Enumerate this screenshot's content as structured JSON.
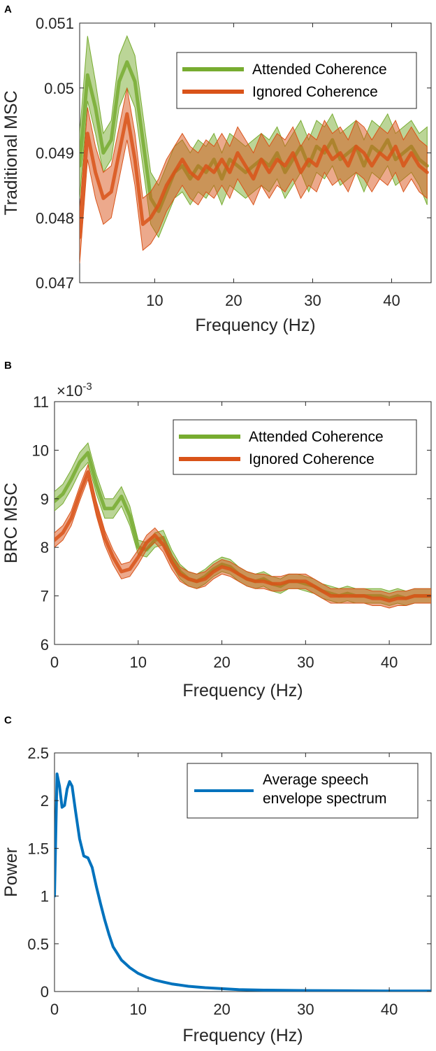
{
  "colors": {
    "attended": "#77AC30",
    "ignored": "#D95319",
    "speech": "#0072BD",
    "axis": "#262626"
  },
  "chart_data": [
    {
      "panel": "A",
      "type": "line",
      "xlabel": "Frequency (Hz)",
      "ylabel": "Traditional MSC",
      "xlim": [
        0.5,
        45
      ],
      "ylim": [
        0.047,
        0.051
      ],
      "xticks": [
        10,
        20,
        30,
        40
      ],
      "xtick_labels": [
        "10",
        "20",
        "30",
        "40"
      ],
      "yticks": [
        0.047,
        0.048,
        0.049,
        0.05,
        0.051
      ],
      "ytick_labels": [
        "0.047",
        "0.048",
        "0.049",
        "0.05",
        "0.051"
      ],
      "exponent": "",
      "legend": [
        "Attended Coherence",
        "Ignored Coherence"
      ],
      "legend_position": "top-right",
      "series": [
        {
          "name": "Attended Coherence",
          "x": [
            0.5,
            1.5,
            2.5,
            3.5,
            4.5,
            5.5,
            6.5,
            7.5,
            8.5,
            9.5,
            10.5,
            11.5,
            12.5,
            13.5,
            14.5,
            15.5,
            16.5,
            17.5,
            18.5,
            19.5,
            20.5,
            21.5,
            22.5,
            23.5,
            24.5,
            25.5,
            26.5,
            27.5,
            28.5,
            29.5,
            30.5,
            31.5,
            32.5,
            33.5,
            34.5,
            35.5,
            36.5,
            37.5,
            38.5,
            39.5,
            40.5,
            41.5,
            42.5,
            43.5,
            44.5
          ],
          "mean": [
            0.0488,
            0.0502,
            0.0497,
            0.049,
            0.0492,
            0.0501,
            0.0504,
            0.0501,
            0.0492,
            0.0483,
            0.0481,
            0.0484,
            0.0487,
            0.0488,
            0.0486,
            0.0488,
            0.0487,
            0.0489,
            0.0486,
            0.0489,
            0.0488,
            0.0487,
            0.0488,
            0.0489,
            0.0488,
            0.049,
            0.0487,
            0.0489,
            0.0491,
            0.0488,
            0.0491,
            0.049,
            0.0492,
            0.0489,
            0.049,
            0.0491,
            0.0488,
            0.0491,
            0.049,
            0.0492,
            0.0489,
            0.049,
            0.0491,
            0.0489,
            0.0488
          ],
          "lower": [
            0.0483,
            0.0498,
            0.0493,
            0.0487,
            0.0489,
            0.0497,
            0.05,
            0.0497,
            0.0488,
            0.0479,
            0.0477,
            0.048,
            0.0483,
            0.0484,
            0.0482,
            0.0484,
            0.0483,
            0.0485,
            0.0482,
            0.0485,
            0.0484,
            0.0483,
            0.0484,
            0.0485,
            0.0484,
            0.0486,
            0.0483,
            0.0485,
            0.0487,
            0.0484,
            0.0487,
            0.0486,
            0.0488,
            0.0485,
            0.0486,
            0.0487,
            0.0484,
            0.0487,
            0.0486,
            0.0488,
            0.0485,
            0.0486,
            0.0487,
            0.0485,
            0.0482
          ],
          "upper": [
            0.0493,
            0.0508,
            0.0501,
            0.0493,
            0.0495,
            0.0505,
            0.0508,
            0.0505,
            0.0496,
            0.0487,
            0.0485,
            0.0488,
            0.0491,
            0.0492,
            0.049,
            0.0492,
            0.0491,
            0.0493,
            0.049,
            0.0493,
            0.0492,
            0.0491,
            0.0492,
            0.0493,
            0.0492,
            0.0494,
            0.0491,
            0.0493,
            0.0495,
            0.0492,
            0.0495,
            0.0494,
            0.0496,
            0.0493,
            0.0494,
            0.0495,
            0.0492,
            0.0495,
            0.0494,
            0.0496,
            0.0493,
            0.0494,
            0.0495,
            0.0493,
            0.0494
          ]
        },
        {
          "name": "Ignored Coherence",
          "x": [
            0.5,
            1.5,
            2.5,
            3.5,
            4.5,
            5.5,
            6.5,
            7.5,
            8.5,
            9.5,
            10.5,
            11.5,
            12.5,
            13.5,
            14.5,
            15.5,
            16.5,
            17.5,
            18.5,
            19.5,
            20.5,
            21.5,
            22.5,
            23.5,
            24.5,
            25.5,
            26.5,
            27.5,
            28.5,
            29.5,
            30.5,
            31.5,
            32.5,
            33.5,
            34.5,
            35.5,
            36.5,
            37.5,
            38.5,
            39.5,
            40.5,
            41.5,
            42.5,
            43.5,
            44.5
          ],
          "mean": [
            0.0477,
            0.0493,
            0.0487,
            0.0483,
            0.0484,
            0.049,
            0.0496,
            0.0489,
            0.0479,
            0.048,
            0.0482,
            0.0485,
            0.0487,
            0.0489,
            0.0487,
            0.0486,
            0.0488,
            0.0487,
            0.0489,
            0.0487,
            0.049,
            0.0488,
            0.0486,
            0.0489,
            0.0487,
            0.0489,
            0.0488,
            0.049,
            0.0487,
            0.0489,
            0.0488,
            0.0491,
            0.0489,
            0.049,
            0.0488,
            0.0491,
            0.049,
            0.0488,
            0.049,
            0.0489,
            0.0491,
            0.0488,
            0.049,
            0.0488,
            0.0487
          ],
          "lower": [
            0.0473,
            0.0489,
            0.0483,
            0.0479,
            0.048,
            0.0486,
            0.0492,
            0.0485,
            0.0475,
            0.0476,
            0.0478,
            0.0481,
            0.0483,
            0.0485,
            0.0483,
            0.0482,
            0.0484,
            0.0483,
            0.0485,
            0.0483,
            0.0486,
            0.0484,
            0.0482,
            0.0485,
            0.0483,
            0.0485,
            0.0484,
            0.0486,
            0.0483,
            0.0485,
            0.0484,
            0.0487,
            0.0485,
            0.0486,
            0.0484,
            0.0487,
            0.0486,
            0.0484,
            0.0486,
            0.0485,
            0.0487,
            0.0484,
            0.0486,
            0.0484,
            0.0483
          ],
          "upper": [
            0.0481,
            0.0497,
            0.0491,
            0.0487,
            0.0488,
            0.0494,
            0.05,
            0.0493,
            0.0483,
            0.0484,
            0.0486,
            0.0489,
            0.0491,
            0.0493,
            0.0491,
            0.049,
            0.0492,
            0.0491,
            0.0493,
            0.0491,
            0.0494,
            0.0492,
            0.049,
            0.0493,
            0.0491,
            0.0493,
            0.0492,
            0.0494,
            0.0491,
            0.0493,
            0.0492,
            0.0495,
            0.0493,
            0.0494,
            0.0492,
            0.0495,
            0.0494,
            0.0492,
            0.0494,
            0.0493,
            0.0495,
            0.0492,
            0.0494,
            0.0492,
            0.0491
          ]
        }
      ]
    },
    {
      "panel": "B",
      "type": "line",
      "xlabel": "Frequency (Hz)",
      "ylabel": "BRC MSC",
      "xlim": [
        0,
        45
      ],
      "ylim": [
        6,
        11
      ],
      "xticks": [
        0,
        10,
        20,
        30,
        40
      ],
      "xtick_labels": [
        "0",
        "10",
        "20",
        "30",
        "40"
      ],
      "yticks": [
        6,
        7,
        8,
        9,
        10,
        11
      ],
      "ytick_labels": [
        "6",
        "7",
        "8",
        "9",
        "10",
        "11"
      ],
      "exponent": "-3",
      "legend": [
        "Attended Coherence",
        "Ignored Coherence"
      ],
      "legend_position": "top-right",
      "series": [
        {
          "name": "Attended Coherence",
          "x": [
            0,
            1,
            2,
            3,
            4,
            5,
            6,
            7,
            8,
            9,
            10,
            11,
            12,
            13,
            14,
            15,
            16,
            17,
            18,
            19,
            20,
            21,
            22,
            23,
            24,
            25,
            26,
            27,
            28,
            29,
            30,
            31,
            32,
            33,
            34,
            35,
            36,
            37,
            38,
            39,
            40,
            41,
            42,
            43,
            44,
            45
          ],
          "mean": [
            8.95,
            9.1,
            9.4,
            9.75,
            9.95,
            9.3,
            8.8,
            8.8,
            9.05,
            8.65,
            8.0,
            7.95,
            8.15,
            8.2,
            7.8,
            7.5,
            7.35,
            7.3,
            7.4,
            7.55,
            7.65,
            7.6,
            7.45,
            7.35,
            7.3,
            7.35,
            7.25,
            7.2,
            7.3,
            7.3,
            7.25,
            7.2,
            7.1,
            7.05,
            7.0,
            7.05,
            7.0,
            7.0,
            7.0,
            7.0,
            6.95,
            7.0,
            6.95,
            7.0,
            7.0,
            7.0
          ],
          "lower": [
            8.75,
            8.9,
            9.2,
            9.55,
            9.75,
            9.1,
            8.6,
            8.6,
            8.85,
            8.45,
            7.85,
            7.8,
            8.0,
            8.05,
            7.65,
            7.35,
            7.2,
            7.15,
            7.25,
            7.4,
            7.5,
            7.45,
            7.3,
            7.2,
            7.15,
            7.2,
            7.1,
            7.05,
            7.15,
            7.15,
            7.1,
            7.05,
            6.95,
            6.9,
            6.85,
            6.9,
            6.85,
            6.85,
            6.85,
            6.85,
            6.8,
            6.85,
            6.8,
            6.85,
            6.85,
            6.85
          ],
          "upper": [
            9.15,
            9.3,
            9.6,
            9.95,
            10.15,
            9.5,
            9.0,
            9.0,
            9.25,
            8.85,
            8.15,
            8.1,
            8.3,
            8.35,
            7.95,
            7.65,
            7.5,
            7.45,
            7.55,
            7.7,
            7.8,
            7.75,
            7.6,
            7.5,
            7.45,
            7.5,
            7.4,
            7.35,
            7.45,
            7.45,
            7.4,
            7.35,
            7.25,
            7.2,
            7.15,
            7.2,
            7.15,
            7.15,
            7.15,
            7.15,
            7.1,
            7.15,
            7.1,
            7.15,
            7.15,
            7.15
          ]
        },
        {
          "name": "Ignored Coherence",
          "x": [
            0,
            1,
            2,
            3,
            4,
            5,
            6,
            7,
            8,
            9,
            10,
            11,
            12,
            13,
            14,
            15,
            16,
            17,
            18,
            19,
            20,
            21,
            22,
            23,
            24,
            25,
            26,
            27,
            28,
            29,
            30,
            31,
            32,
            33,
            34,
            35,
            36,
            37,
            38,
            39,
            40,
            41,
            42,
            43,
            44,
            45
          ],
          "mean": [
            8.15,
            8.3,
            8.6,
            9.1,
            9.55,
            8.8,
            8.2,
            7.8,
            7.5,
            7.55,
            7.8,
            8.1,
            8.25,
            8.05,
            7.7,
            7.45,
            7.35,
            7.3,
            7.35,
            7.5,
            7.6,
            7.55,
            7.45,
            7.35,
            7.3,
            7.3,
            7.25,
            7.25,
            7.3,
            7.3,
            7.3,
            7.2,
            7.1,
            7.0,
            7.0,
            7.0,
            7.0,
            7.0,
            6.95,
            6.95,
            6.9,
            6.95,
            6.95,
            7.0,
            7.0,
            7.0
          ],
          "lower": [
            8.0,
            8.15,
            8.45,
            8.95,
            9.4,
            8.65,
            8.05,
            7.65,
            7.35,
            7.4,
            7.65,
            7.95,
            8.1,
            7.9,
            7.55,
            7.3,
            7.2,
            7.15,
            7.2,
            7.35,
            7.45,
            7.4,
            7.3,
            7.2,
            7.15,
            7.15,
            7.1,
            7.1,
            7.15,
            7.15,
            7.15,
            7.05,
            6.95,
            6.85,
            6.85,
            6.85,
            6.85,
            6.85,
            6.8,
            6.8,
            6.75,
            6.8,
            6.8,
            6.85,
            6.85,
            6.85
          ],
          "upper": [
            8.3,
            8.45,
            8.75,
            9.25,
            9.7,
            8.95,
            8.35,
            7.95,
            7.65,
            7.7,
            7.95,
            8.25,
            8.4,
            8.2,
            7.85,
            7.6,
            7.5,
            7.45,
            7.5,
            7.65,
            7.75,
            7.7,
            7.6,
            7.5,
            7.45,
            7.45,
            7.4,
            7.4,
            7.45,
            7.45,
            7.45,
            7.35,
            7.25,
            7.15,
            7.15,
            7.15,
            7.15,
            7.15,
            7.1,
            7.1,
            7.05,
            7.1,
            7.1,
            7.15,
            7.15,
            7.15
          ]
        }
      ]
    },
    {
      "panel": "C",
      "type": "line",
      "xlabel": "Frequency (Hz)",
      "ylabel": "Power",
      "xlim": [
        0,
        45
      ],
      "ylim": [
        0,
        2.5
      ],
      "xticks": [
        0,
        10,
        20,
        30,
        40
      ],
      "xtick_labels": [
        "0",
        "10",
        "20",
        "30",
        "40"
      ],
      "yticks": [
        0,
        0.5,
        1,
        1.5,
        2,
        2.5
      ],
      "ytick_labels": [
        "0",
        "0.5",
        "1",
        "1.5",
        "2",
        "2.5"
      ],
      "exponent": "",
      "legend": [
        "Average speech envelope spectrum"
      ],
      "legend_lines": [
        "Average speech",
        "envelope spectrum"
      ],
      "legend_position": "top-right",
      "series": [
        {
          "name": "Average speech envelope spectrum",
          "x": [
            0,
            0.3,
            0.6,
            0.9,
            1.2,
            1.5,
            1.8,
            2.1,
            2.5,
            3.0,
            3.5,
            4.0,
            4.5,
            5.0,
            5.5,
            6.0,
            6.5,
            7.0,
            8.0,
            9.0,
            10,
            11,
            12,
            13,
            14,
            16,
            18,
            20,
            22,
            25,
            30,
            35,
            40,
            45
          ],
          "y": [
            1.0,
            2.28,
            2.15,
            1.93,
            1.95,
            2.12,
            2.2,
            2.15,
            1.9,
            1.6,
            1.42,
            1.4,
            1.3,
            1.1,
            0.92,
            0.75,
            0.6,
            0.47,
            0.33,
            0.25,
            0.19,
            0.15,
            0.12,
            0.1,
            0.08,
            0.055,
            0.04,
            0.03,
            0.02,
            0.015,
            0.01,
            0.008,
            0.006,
            0.005
          ]
        }
      ]
    }
  ]
}
